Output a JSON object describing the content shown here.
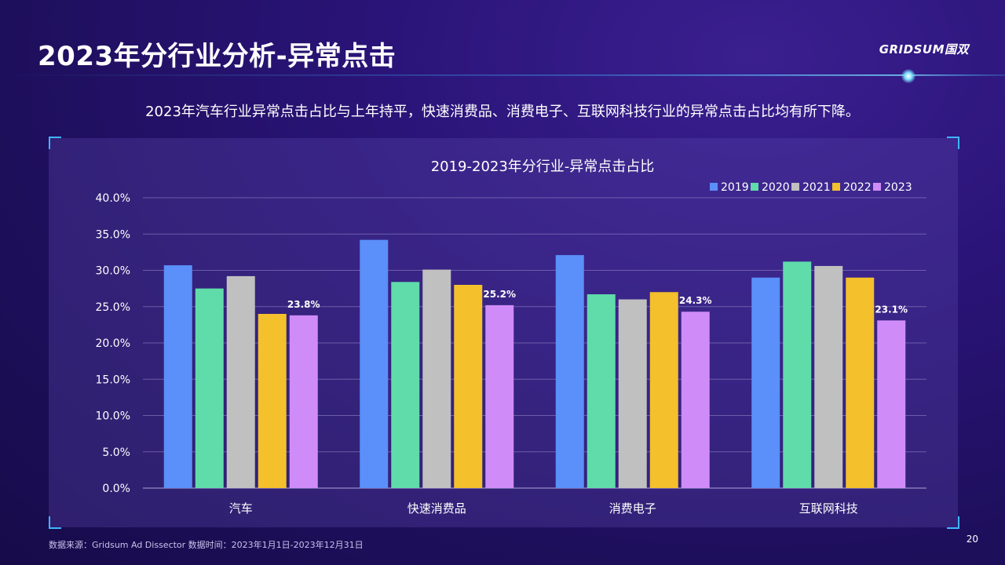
{
  "header": {
    "title": "2023年分行业分析-异常点击",
    "logo_text": "GRIDSUM国双"
  },
  "subtitle": "2023年汽车行业异常点击占比与上年持平，快速消费品、消费电子、互联网科技行业的异常点击占比均有所下降。",
  "footer": {
    "source": "数据来源：Gridsum Ad Dissector 数据时间：2023年1月1日-2023年12月31日",
    "page_number": "20"
  },
  "colors": {
    "accent": "#3fb6ff",
    "grid": "#8f86c4",
    "label_text": "#ffffff"
  },
  "chart_data": {
    "type": "bar",
    "title": "2019-2023年分行业-异常点击占比",
    "xlabel": "",
    "ylabel": "",
    "ylim": [
      0,
      40
    ],
    "yticks": [
      "0.0%",
      "5.0%",
      "10.0%",
      "15.0%",
      "20.0%",
      "25.0%",
      "30.0%",
      "35.0%",
      "40.0%"
    ],
    "grid": true,
    "legend_position": "top-right",
    "categories": [
      "汽车",
      "快速消费品",
      "消费电子",
      "互联网科技"
    ],
    "series": [
      {
        "name": "2019",
        "color": "#5b8ff9",
        "values": [
          30.7,
          34.2,
          32.1,
          29.0
        ]
      },
      {
        "name": "2020",
        "color": "#5fdcaa",
        "values": [
          27.5,
          28.4,
          26.7,
          31.2
        ]
      },
      {
        "name": "2021",
        "color": "#c0c0c0",
        "values": [
          29.2,
          30.1,
          26.0,
          30.6
        ]
      },
      {
        "name": "2022",
        "color": "#f4c02c",
        "values": [
          24.0,
          28.0,
          27.0,
          29.0
        ]
      },
      {
        "name": "2023",
        "color": "#cf8cf8",
        "values": [
          23.8,
          25.2,
          24.3,
          23.1
        ],
        "data_labels": [
          "23.8%",
          "25.2%",
          "24.3%",
          "23.1%"
        ]
      }
    ]
  }
}
